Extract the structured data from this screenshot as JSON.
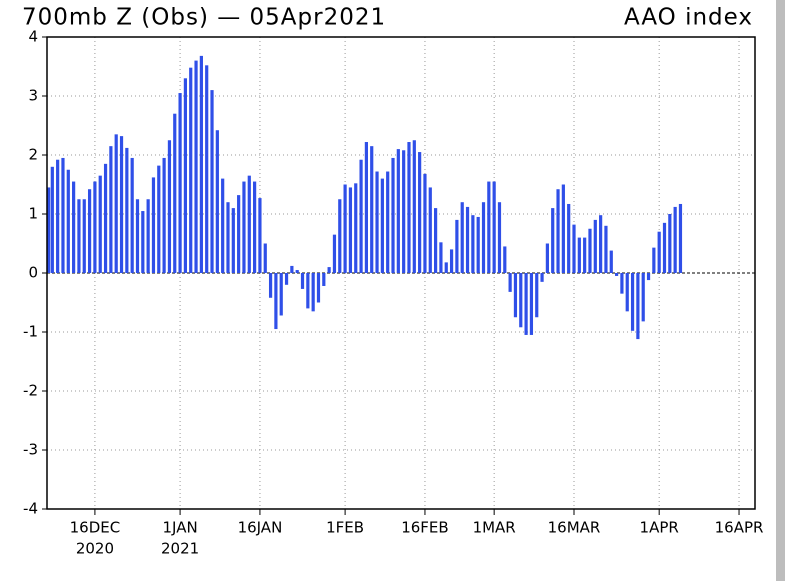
{
  "chart_data": {
    "type": "bar",
    "title": "700mb Z (Obs) — 05Apr2021",
    "subtitle": "AAO index",
    "color": "#2f4fe8",
    "x": [
      "2020-12-07",
      "2020-12-08",
      "2020-12-09",
      "2020-12-10",
      "2020-12-11",
      "2020-12-12",
      "2020-12-13",
      "2020-12-14",
      "2020-12-15",
      "2020-12-16",
      "2020-12-17",
      "2020-12-18",
      "2020-12-19",
      "2020-12-20",
      "2020-12-21",
      "2020-12-22",
      "2020-12-23",
      "2020-12-24",
      "2020-12-25",
      "2020-12-26",
      "2020-12-27",
      "2020-12-28",
      "2020-12-29",
      "2020-12-30",
      "2020-12-31",
      "2021-01-01",
      "2021-01-02",
      "2021-01-03",
      "2021-01-04",
      "2021-01-05",
      "2021-01-06",
      "2021-01-07",
      "2021-01-08",
      "2021-01-09",
      "2021-01-10",
      "2021-01-11",
      "2021-01-12",
      "2021-01-13",
      "2021-01-14",
      "2021-01-15",
      "2021-01-16",
      "2021-01-17",
      "2021-01-18",
      "2021-01-19",
      "2021-01-20",
      "2021-01-21",
      "2021-01-22",
      "2021-01-23",
      "2021-01-24",
      "2021-01-25",
      "2021-01-26",
      "2021-01-27",
      "2021-01-28",
      "2021-01-29",
      "2021-01-30",
      "2021-01-31",
      "2021-02-01",
      "2021-02-02",
      "2021-02-03",
      "2021-02-04",
      "2021-02-05",
      "2021-02-06",
      "2021-02-07",
      "2021-02-08",
      "2021-02-09",
      "2021-02-10",
      "2021-02-11",
      "2021-02-12",
      "2021-02-13",
      "2021-02-14",
      "2021-02-15",
      "2021-02-16",
      "2021-02-17",
      "2021-02-18",
      "2021-02-19",
      "2021-02-20",
      "2021-02-21",
      "2021-02-22",
      "2021-02-23",
      "2021-02-24",
      "2021-02-25",
      "2021-02-26",
      "2021-02-27",
      "2021-02-28",
      "2021-03-01",
      "2021-03-02",
      "2021-03-03",
      "2021-03-04",
      "2021-03-05",
      "2021-03-06",
      "2021-03-07",
      "2021-03-08",
      "2021-03-09",
      "2021-03-10",
      "2021-03-11",
      "2021-03-12",
      "2021-03-13",
      "2021-03-14",
      "2021-03-15",
      "2021-03-16",
      "2021-03-17",
      "2021-03-18",
      "2021-03-19",
      "2021-03-20",
      "2021-03-21",
      "2021-03-22",
      "2021-03-23",
      "2021-03-24",
      "2021-03-25",
      "2021-03-26",
      "2021-03-27",
      "2021-03-28",
      "2021-03-29",
      "2021-03-30",
      "2021-03-31",
      "2021-04-01",
      "2021-04-02",
      "2021-04-03",
      "2021-04-04",
      "2021-04-05"
    ],
    "values": [
      1.45,
      1.8,
      1.92,
      1.95,
      1.75,
      1.55,
      1.25,
      1.25,
      1.42,
      1.55,
      1.65,
      1.85,
      2.15,
      2.35,
      2.32,
      2.12,
      1.95,
      1.25,
      1.05,
      1.25,
      1.62,
      1.82,
      1.95,
      2.25,
      2.7,
      3.05,
      3.3,
      3.48,
      3.6,
      3.68,
      3.52,
      3.1,
      2.42,
      1.6,
      1.2,
      1.1,
      1.32,
      1.55,
      1.65,
      1.55,
      1.27,
      0.5,
      -0.42,
      -0.95,
      -0.72,
      -0.2,
      0.12,
      0.05,
      -0.27,
      -0.6,
      -0.65,
      -0.5,
      -0.22,
      0.1,
      0.65,
      1.25,
      1.5,
      1.45,
      1.52,
      1.92,
      2.22,
      2.15,
      1.72,
      1.6,
      1.72,
      1.95,
      2.1,
      2.08,
      2.22,
      2.25,
      2.05,
      1.68,
      1.45,
      1.1,
      0.52,
      0.18,
      0.4,
      0.9,
      1.2,
      1.12,
      0.98,
      0.95,
      1.2,
      1.55,
      1.55,
      1.2,
      0.45,
      -0.32,
      -0.75,
      -0.92,
      -1.05,
      -1.05,
      -0.75,
      -0.15,
      0.5,
      1.1,
      1.42,
      1.5,
      1.17,
      0.82,
      0.6,
      0.6,
      0.75,
      0.9,
      0.98,
      0.8,
      0.38,
      -0.05,
      -0.35,
      -0.65,
      -0.98,
      -1.12,
      -0.82,
      -0.12,
      0.43,
      0.7,
      0.85,
      1.0,
      1.12,
      1.17
    ],
    "xlim": [
      "2020-12-07",
      "2021-04-19"
    ],
    "xticks": [
      {
        "value": "2020-12-16",
        "label": "16DEC",
        "year": "2020"
      },
      {
        "value": "2021-01-01",
        "label": "1JAN",
        "year": "2021"
      },
      {
        "value": "2021-01-16",
        "label": "16JAN"
      },
      {
        "value": "2021-02-01",
        "label": "1FEB"
      },
      {
        "value": "2021-02-16",
        "label": "16FEB"
      },
      {
        "value": "2021-03-01",
        "label": "1MAR"
      },
      {
        "value": "2021-03-16",
        "label": "16MAR"
      },
      {
        "value": "2021-04-01",
        "label": "1APR"
      },
      {
        "value": "2021-04-16",
        "label": "16APR"
      }
    ],
    "ylim": [
      -4,
      4
    ],
    "yticks": [
      -4,
      -3,
      -2,
      -1,
      0,
      1,
      2,
      3,
      4
    ],
    "grid": true
  }
}
